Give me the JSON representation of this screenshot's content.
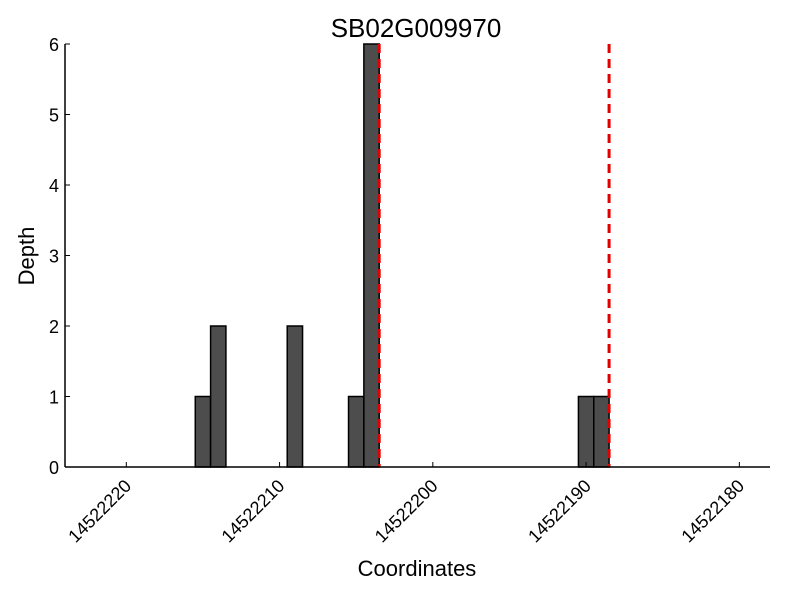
{
  "chart_data": {
    "type": "bar",
    "title": "SB02G009970",
    "xlabel": "Coordinates",
    "ylabel": "Depth",
    "xlim": [
      14522224,
      14522178
    ],
    "ylim": [
      0,
      6
    ],
    "x_inverted": true,
    "bar_width": 1,
    "xticks": [
      14522220,
      14522210,
      14522200,
      14522190,
      14522180
    ],
    "xtick_labels": [
      "14522220",
      "14522210",
      "14522200",
      "14522190",
      "14522180"
    ],
    "yticks": [
      0,
      1,
      2,
      3,
      4,
      5,
      6
    ],
    "ytick_labels": [
      "0",
      "1",
      "2",
      "3",
      "4",
      "5",
      "6"
    ],
    "bars": [
      {
        "x": 14522215,
        "value": 1
      },
      {
        "x": 14522214,
        "value": 2
      },
      {
        "x": 14522209,
        "value": 2
      },
      {
        "x": 14522205,
        "value": 1
      },
      {
        "x": 14522204,
        "value": 6
      },
      {
        "x": 14522190,
        "value": 1
      },
      {
        "x": 14522189,
        "value": 1
      }
    ],
    "reference_lines": [
      14522203.5,
      14522188.5
    ],
    "colors": {
      "bar_fill": "#4d4d4d",
      "bar_edge": "#000000",
      "reference_line": "#e00000"
    },
    "grid": false,
    "legend": "none"
  }
}
